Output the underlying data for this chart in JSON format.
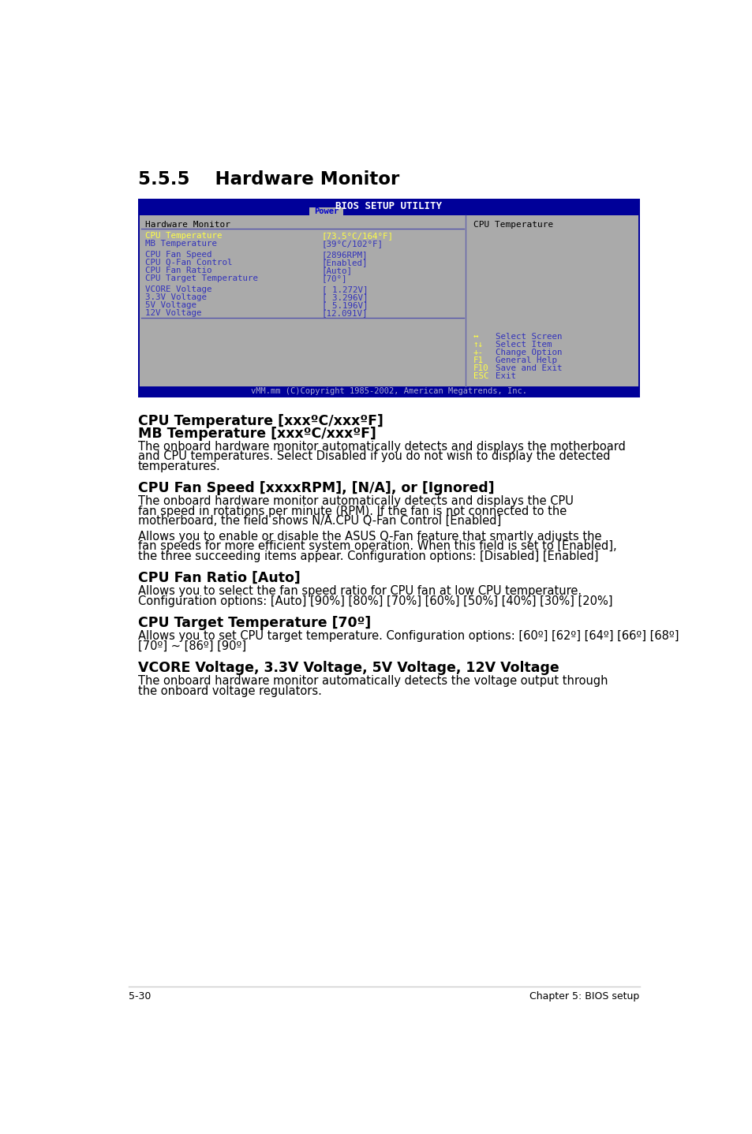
{
  "page_bg": "#ffffff",
  "section_title_num": "5.5.5",
  "section_title_text": "    Hardware Monitor",
  "bios_outer_bg": "#000099",
  "bios_inner_bg": "#aaaaaa",
  "bios_header_text": "BIOS SETUP UTILITY",
  "bios_tab_text": "Power",
  "bios_footer_text": "vMM.mm (C)Copyright 1985-2002, American Megatrends, Inc.",
  "left_groups": [
    [
      {
        "label": "CPU Temperature",
        "value": "[73.5°C/164°F]",
        "highlight": true
      },
      {
        "label": "MB Temperature",
        "value": "[39°C/102°F]",
        "highlight": false
      }
    ],
    [
      {
        "label": "CPU Fan Speed",
        "value": "[2896RPM]",
        "highlight": false
      },
      {
        "label": "CPU Q-Fan Control",
        "value": "[Enabled]",
        "highlight": false
      },
      {
        "label": "CPU Fan Ratio",
        "value": "[Auto]",
        "highlight": false
      },
      {
        "label": "CPU Target Temperature",
        "value": "[70°]",
        "highlight": false
      }
    ],
    [
      {
        "label": "VCORE Voltage",
        "value": "[ 1.272V]",
        "highlight": false
      },
      {
        "label": "3.3V Voltage",
        "value": "[ 3.296V]",
        "highlight": false
      },
      {
        "label": "5V Voltage",
        "value": "[ 5.196V]",
        "highlight": false
      },
      {
        "label": "12V Voltage",
        "value": "[12.091V]",
        "highlight": false
      }
    ]
  ],
  "right_title": "CPU Temperature",
  "right_keys": [
    [
      "↔",
      "Select Screen"
    ],
    [
      "↑↓",
      "Select Item"
    ],
    [
      "+-",
      "Change Option"
    ],
    [
      "F1",
      "General Help"
    ],
    [
      "F10",
      "Save and Exit"
    ],
    [
      "ESC",
      "Exit"
    ]
  ],
  "sections": [
    {
      "heading": "CPU Temperature [xxxºC/xxxºF]\nMB Temperature [xxxºC/xxxºF]",
      "body_paras": [
        "The onboard hardware monitor automatically detects and displays the motherboard\nand CPU temperatures. Select Disabled if you do not wish to display the detected\ntemperatures."
      ]
    },
    {
      "heading": "CPU Fan Speed [xxxxRPM], [N/A], or [Ignored]",
      "body_paras": [
        "The onboard hardware monitor automatically detects and displays the CPU\nfan speed in rotations per minute (RPM). If the fan is not connected to the\nmotherboard, the field shows N/A.CPU Q-Fan Control [Enabled]",
        "Allows you to enable or disable the ASUS Q-Fan feature that smartly adjusts the\nfan speeds for more efficient system operation. When this field is set to [Enabled],\nthe three succeeding items appear. Configuration options: [Disabled] [Enabled]"
      ]
    },
    {
      "heading": "CPU Fan Ratio [Auto]",
      "body_paras": [
        "Allows you to select the fan speed ratio for CPU fan at low CPU temperature.\nConfiguration options: [Auto] [90%] [80%] [70%] [60%] [50%] [40%] [30%] [20%]"
      ]
    },
    {
      "heading": "CPU Target Temperature [70º]",
      "body_paras": [
        "Allows you to set CPU target temperature. Configuration options: [60º] [62º] [64º] [66º] [68º]\n[70º] ~ [86º] [90º]"
      ]
    },
    {
      "heading": "VCORE Voltage, 3.3V Voltage, 5V Voltage, 12V Voltage",
      "body_paras": [
        "The onboard hardware monitor automatically detects the voltage output through\nthe onboard voltage regulators."
      ]
    }
  ],
  "footer_left": "5-30",
  "footer_right": "Chapter 5: BIOS setup"
}
